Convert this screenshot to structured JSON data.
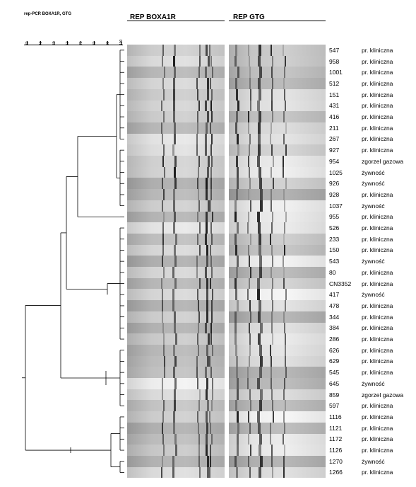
{
  "figure_title": "rep-PCR BOXA1R, GTG",
  "panels": {
    "boxa1r_title": "REP BOXA1R",
    "gtg_title": "REP GTG"
  },
  "similarity_scale": {
    "ticks": [
      "30",
      "40",
      "50",
      "60",
      "70",
      "80",
      "90",
      "100"
    ]
  },
  "isolates": [
    {
      "id": "547",
      "source": "pr. kliniczna"
    },
    {
      "id": "958",
      "source": "pr. kliniczna"
    },
    {
      "id": "1001",
      "source": "pr. kliniczna"
    },
    {
      "id": "512",
      "source": "pr. kliniczna"
    },
    {
      "id": "151",
      "source": "pr. kliniczna"
    },
    {
      "id": "431",
      "source": "pr. kliniczna"
    },
    {
      "id": "416",
      "source": "pr. kliniczna"
    },
    {
      "id": "211",
      "source": "pr. kliniczna"
    },
    {
      "id": "267",
      "source": "pr. kliniczna"
    },
    {
      "id": "927",
      "source": "pr. kliniczna"
    },
    {
      "id": "954",
      "source": "zgorzel gazowa"
    },
    {
      "id": "1025",
      "source": "żywność"
    },
    {
      "id": "926",
      "source": "żywność"
    },
    {
      "id": "928",
      "source": "pr. kliniczna"
    },
    {
      "id": "1037",
      "source": "żywność"
    },
    {
      "id": "955",
      "source": "pr. kliniczna"
    },
    {
      "id": "526",
      "source": "pr. kliniczna"
    },
    {
      "id": "233",
      "source": "pr. kliniczna"
    },
    {
      "id": "150",
      "source": "pr. kliniczna"
    },
    {
      "id": "543",
      "source": "żywność"
    },
    {
      "id": "80",
      "source": "pr. kliniczna"
    },
    {
      "id": "CN3352",
      "source": "pr. kliniczna"
    },
    {
      "id": "417",
      "source": "żywność"
    },
    {
      "id": "478",
      "source": "pr. kliniczna"
    },
    {
      "id": "344",
      "source": "pr. kliniczna"
    },
    {
      "id": "384",
      "source": "pr. kliniczna"
    },
    {
      "id": "286",
      "source": "pr. kliniczna"
    },
    {
      "id": "626",
      "source": "pr. kliniczna"
    },
    {
      "id": "629",
      "source": "pr. kliniczna"
    },
    {
      "id": "545",
      "source": "pr. kliniczna"
    },
    {
      "id": "645",
      "source": "żywność"
    },
    {
      "id": "859",
      "source": "zgorzel gazowa"
    },
    {
      "id": "597",
      "source": "pr. kliniczna"
    },
    {
      "id": "1116",
      "source": "pr. kliniczna"
    },
    {
      "id": "1121",
      "source": "pr. kliniczna"
    },
    {
      "id": "1172",
      "source": "pr. kliniczna"
    },
    {
      "id": "1126",
      "source": "pr. kliniczna"
    },
    {
      "id": "1270",
      "source": "żywność"
    },
    {
      "id": "1266",
      "source": "pr. kliniczna"
    }
  ],
  "colors": {
    "line": "#000000",
    "gel_light": "#e2e2e2",
    "gel_dark": "#a8a8a8",
    "band": "#111111"
  }
}
